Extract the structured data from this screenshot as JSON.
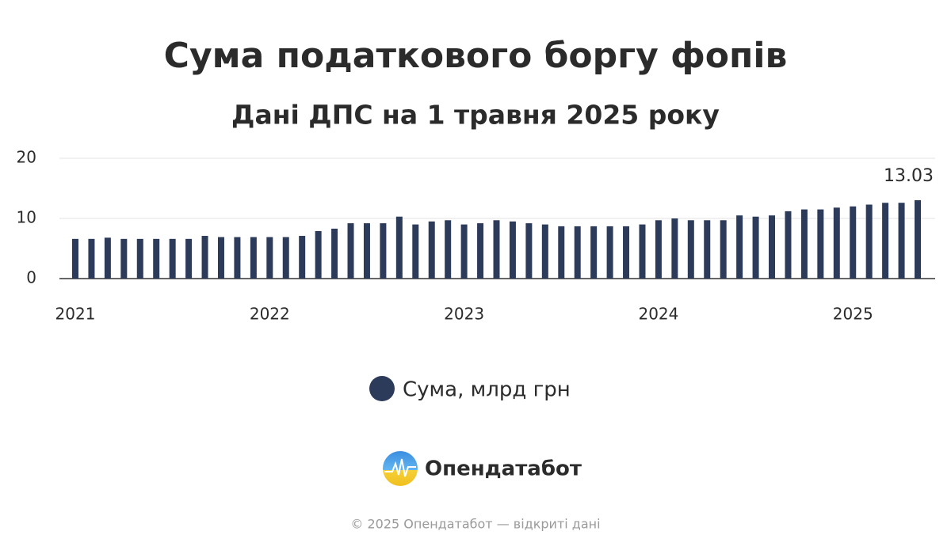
{
  "chart_data": {
    "type": "bar",
    "title": "Сума податкового боргу фопів",
    "subtitle": "Дані ДПС на 1 травня 2025 року",
    "categories": [
      "2021",
      null,
      null,
      null,
      null,
      null,
      null,
      null,
      null,
      null,
      null,
      null,
      "2022",
      null,
      null,
      null,
      null,
      null,
      null,
      null,
      null,
      null,
      null,
      null,
      "2023",
      null,
      null,
      null,
      null,
      null,
      null,
      null,
      null,
      null,
      null,
      null,
      "2024",
      null,
      null,
      null,
      null,
      null,
      null,
      null,
      null,
      null,
      null,
      null,
      "2025",
      null,
      null,
      null,
      null
    ],
    "series": [
      {
        "name": "Сума, млрд грн",
        "color": "#2d3b5a",
        "values": [
          6.6,
          6.6,
          6.8,
          6.6,
          6.6,
          6.6,
          6.6,
          6.6,
          7.1,
          6.9,
          6.9,
          6.9,
          6.9,
          6.9,
          7.1,
          7.9,
          8.3,
          9.2,
          9.2,
          9.2,
          10.3,
          9.0,
          9.5,
          9.7,
          9.0,
          9.2,
          9.7,
          9.5,
          9.2,
          9.0,
          8.7,
          8.7,
          8.7,
          8.7,
          8.7,
          9.0,
          9.7,
          10.0,
          9.7,
          9.7,
          9.7,
          10.5,
          10.3,
          10.5,
          11.2,
          11.5,
          11.5,
          11.8,
          12.0,
          12.3,
          12.6,
          12.6,
          13.03
        ],
        "value_labels": [
          null,
          null,
          null,
          null,
          null,
          null,
          null,
          null,
          null,
          null,
          null,
          null,
          null,
          null,
          null,
          null,
          null,
          null,
          null,
          null,
          null,
          null,
          null,
          null,
          null,
          null,
          null,
          null,
          null,
          null,
          null,
          null,
          null,
          null,
          null,
          null,
          null,
          null,
          null,
          null,
          null,
          null,
          null,
          null,
          null,
          null,
          null,
          null,
          null,
          null,
          null,
          null,
          "13.03"
        ]
      }
    ],
    "ylim": [
      0,
      20
    ],
    "yticks": [
      0,
      10,
      20
    ],
    "grid": true,
    "legend": "bottom"
  },
  "logo": "Опендатабот",
  "footer": "© 2025 Опендатабот — відкриті дані"
}
